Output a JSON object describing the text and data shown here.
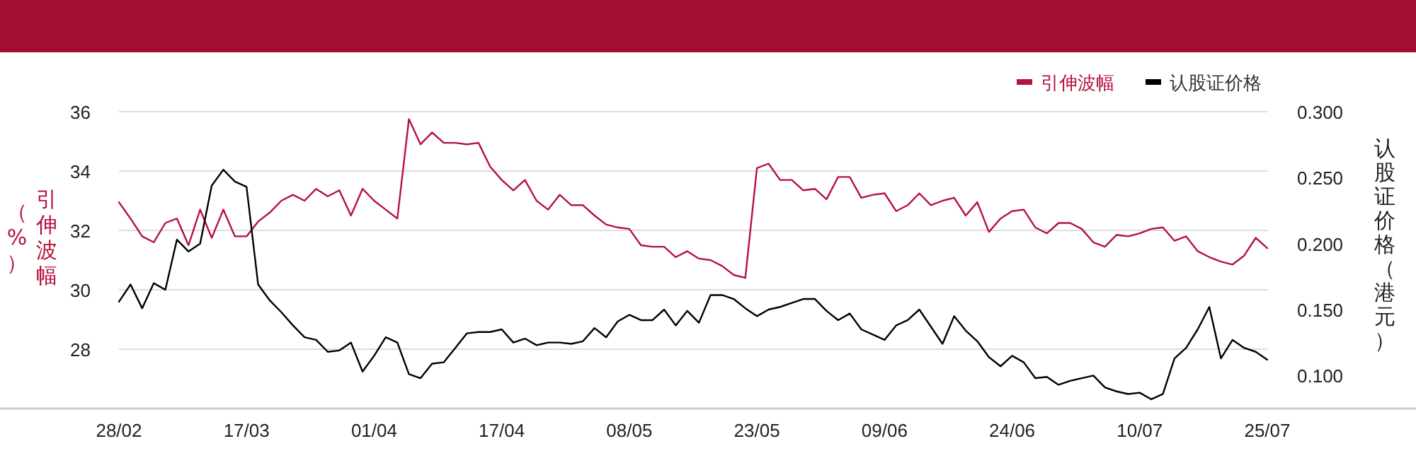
{
  "chart_data": {
    "type": "line",
    "categories": [
      "28/02",
      null,
      null,
      null,
      null,
      null,
      null,
      null,
      null,
      null,
      null,
      "17/03",
      null,
      null,
      null,
      null,
      null,
      null,
      null,
      null,
      null,
      null,
      "01/04",
      null,
      null,
      null,
      null,
      null,
      null,
      null,
      null,
      null,
      null,
      "17/04",
      null,
      null,
      null,
      null,
      null,
      null,
      null,
      null,
      null,
      null,
      "08/05",
      null,
      null,
      null,
      null,
      null,
      null,
      null,
      null,
      null,
      null,
      "23/05",
      null,
      null,
      null,
      null,
      null,
      null,
      null,
      null,
      null,
      null,
      "09/06",
      null,
      null,
      null,
      null,
      null,
      null,
      null,
      null,
      null,
      null,
      "24/06",
      null,
      null,
      null,
      null,
      null,
      null,
      null,
      null,
      null,
      null,
      "10/07",
      null,
      null,
      null,
      null,
      null,
      null,
      null,
      null,
      null,
      null,
      "25/07"
    ],
    "series": [
      {
        "name": "引伸波幅",
        "color": "#b5123c",
        "axis": "y",
        "values": [
          32.95,
          32.4,
          31.8,
          31.6,
          32.25,
          32.4,
          31.5,
          32.7,
          31.75,
          32.7,
          31.8,
          31.8,
          32.3,
          32.6,
          33.0,
          33.2,
          33.0,
          33.4,
          33.15,
          33.35,
          32.5,
          33.4,
          33.0,
          32.7,
          32.4,
          35.75,
          34.9,
          35.3,
          34.95,
          34.95,
          34.9,
          34.95,
          34.15,
          33.7,
          33.35,
          33.7,
          33.0,
          32.7,
          33.2,
          32.85,
          32.85,
          32.5,
          32.2,
          32.1,
          32.05,
          31.5,
          31.45,
          31.45,
          31.1,
          31.3,
          31.05,
          31.0,
          30.8,
          30.5,
          30.4,
          34.1,
          34.25,
          33.7,
          33.7,
          33.35,
          33.4,
          33.05,
          33.8,
          33.8,
          33.1,
          33.2,
          33.25,
          32.65,
          32.85,
          33.25,
          32.85,
          33.0,
          33.1,
          32.5,
          32.95,
          31.95,
          32.4,
          32.65,
          32.7,
          32.1,
          31.9,
          32.25,
          32.25,
          32.05,
          31.6,
          31.45,
          31.85,
          31.8,
          31.9,
          32.05,
          32.1,
          31.65,
          31.8,
          31.3,
          31.1,
          30.95,
          30.85,
          31.15,
          31.75,
          31.4
        ]
      },
      {
        "name": "认股证价格",
        "color": "#000000",
        "axis": "y2",
        "values": [
          0.156,
          0.169,
          0.151,
          0.17,
          0.165,
          0.203,
          0.194,
          0.2,
          0.244,
          0.256,
          0.247,
          0.243,
          0.169,
          0.157,
          0.148,
          0.138,
          0.129,
          0.127,
          0.118,
          0.119,
          0.125,
          0.103,
          0.115,
          0.129,
          0.125,
          0.101,
          0.098,
          0.109,
          0.11,
          0.121,
          0.132,
          0.133,
          0.133,
          0.135,
          0.125,
          0.128,
          0.123,
          0.125,
          0.125,
          0.124,
          0.126,
          0.136,
          0.129,
          0.141,
          0.146,
          0.142,
          0.142,
          0.15,
          0.138,
          0.149,
          0.14,
          0.161,
          0.161,
          0.158,
          0.151,
          0.145,
          0.15,
          0.152,
          0.155,
          0.158,
          0.158,
          0.149,
          0.142,
          0.147,
          0.135,
          0.131,
          0.127,
          0.138,
          0.142,
          0.15,
          0.137,
          0.124,
          0.145,
          0.134,
          0.126,
          0.114,
          0.107,
          0.115,
          0.11,
          0.098,
          0.099,
          0.093,
          0.096,
          0.098,
          0.1,
          0.091,
          0.088,
          0.086,
          0.087,
          0.082,
          0.086,
          0.113,
          0.121,
          0.135,
          0.152,
          0.113,
          0.127,
          0.121,
          0.118,
          0.112
        ]
      }
    ],
    "ylabel": "引伸波幅（%）",
    "y2label": "认股证价格（港元）",
    "ylim": [
      26,
      36
    ],
    "yticks": [
      28,
      30,
      32,
      34,
      36
    ],
    "y2lim": [
      0.075,
      0.3
    ],
    "y2ticks": [
      {
        "value": 0.1,
        "label": "0.100"
      },
      {
        "value": 0.15,
        "label": "0.150"
      },
      {
        "value": 0.2,
        "label": "0.200"
      },
      {
        "value": 0.25,
        "label": "0.250"
      },
      {
        "value": 0.3,
        "label": "0.300"
      }
    ],
    "grid": "y",
    "legend": "top right"
  }
}
